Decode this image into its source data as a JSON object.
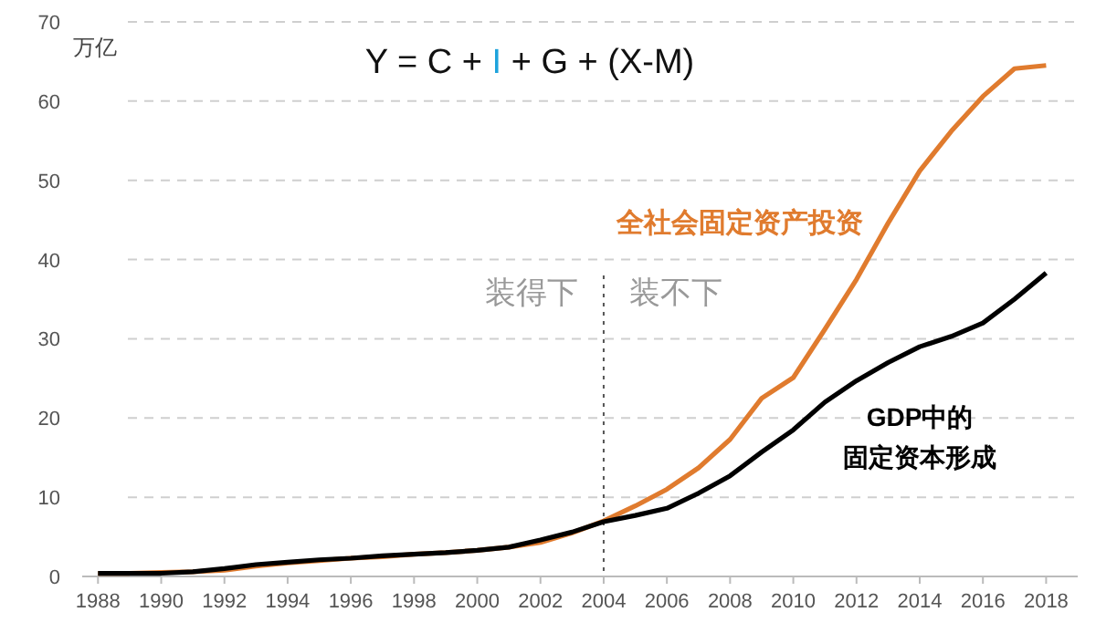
{
  "chart_data": {
    "type": "line",
    "title": "Y = C + I + G + (X-M)",
    "ylabel": "万亿",
    "x": [
      1988,
      1989,
      1990,
      1991,
      1992,
      1993,
      1994,
      1995,
      1996,
      1997,
      1998,
      1999,
      2000,
      2001,
      2002,
      2003,
      2004,
      2005,
      2006,
      2007,
      2008,
      2009,
      2010,
      2011,
      2012,
      2013,
      2014,
      2015,
      2016,
      2017,
      2018
    ],
    "series": [
      {
        "name": "全社会固定资产投资",
        "color": "#e07b2e",
        "values": [
          0.4,
          0.4,
          0.5,
          0.6,
          0.8,
          1.3,
          1.7,
          2.0,
          2.3,
          2.5,
          2.8,
          3.0,
          3.3,
          3.7,
          4.3,
          5.5,
          7.0,
          8.9,
          11.0,
          13.7,
          17.3,
          22.5,
          25.1,
          31.2,
          37.5,
          44.6,
          51.2,
          56.2,
          60.6,
          64.1,
          64.5
        ]
      },
      {
        "name": "GDP中的固定资本形成",
        "color": "#000000",
        "values": [
          0.4,
          0.4,
          0.4,
          0.6,
          1.0,
          1.5,
          1.8,
          2.1,
          2.3,
          2.6,
          2.8,
          3.0,
          3.3,
          3.7,
          4.6,
          5.6,
          6.9,
          7.7,
          8.6,
          10.5,
          12.7,
          15.7,
          18.5,
          22.0,
          24.7,
          27.0,
          29.0,
          30.3,
          32.0,
          35.0,
          38.3
        ]
      }
    ],
    "ref_lines": [
      {
        "axis": "x",
        "value": 2004,
        "color": "#555555",
        "line_style": "dotted"
      }
    ],
    "annotations": [
      "装得下",
      "装不下"
    ],
    "xlim": [
      1987.5,
      2019
    ],
    "ylim": [
      0,
      70
    ],
    "xticks": [
      1988,
      1990,
      1992,
      1994,
      1996,
      1998,
      2000,
      2002,
      2004,
      2006,
      2008,
      2010,
      2012,
      2014,
      2016,
      2018
    ],
    "yticks": [
      0,
      10,
      20,
      30,
      40,
      50,
      60,
      70
    ],
    "grid": "y",
    "legend": false,
    "marker": "none",
    "line_style": "solid"
  }
}
